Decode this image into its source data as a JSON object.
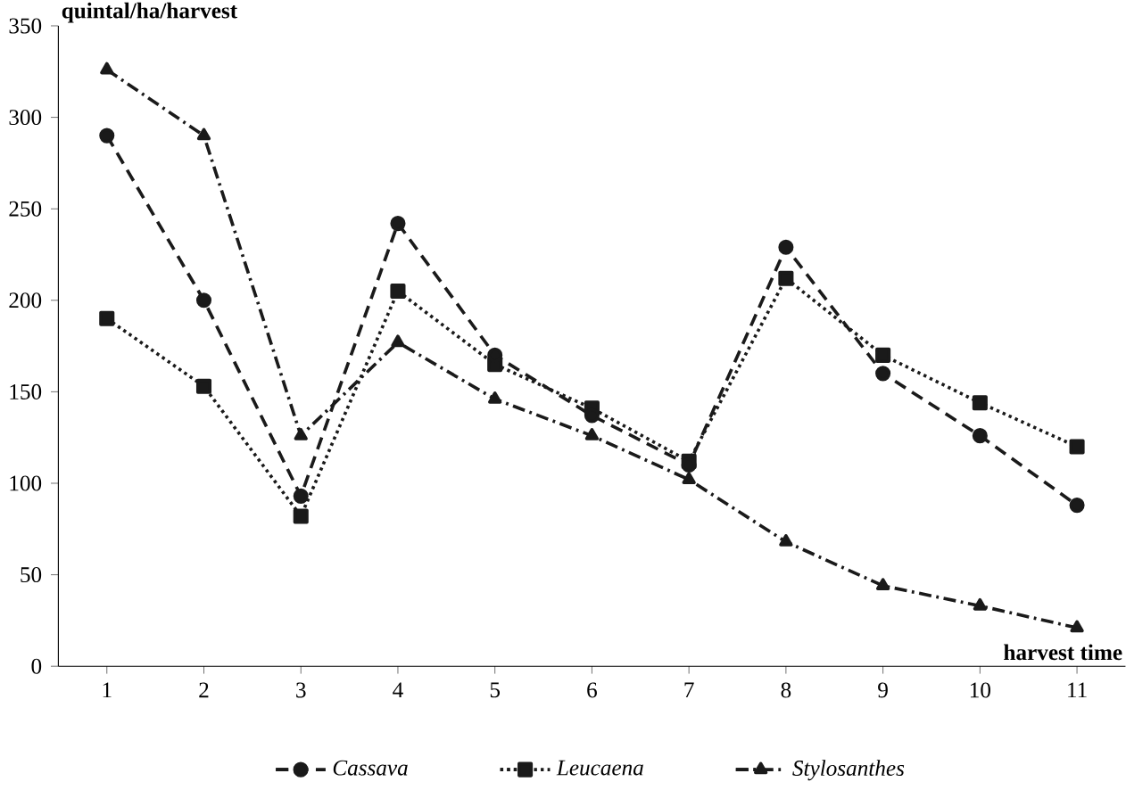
{
  "chart_data": {
    "type": "line",
    "xlabel": "harvest time",
    "ylabel": "quintal/ha/harvest",
    "categories": [
      "1",
      "2",
      "3",
      "4",
      "5",
      "6",
      "7",
      "8",
      "9",
      "10",
      "11"
    ],
    "series": [
      {
        "name": "Cassava",
        "color": "#1a1a1a",
        "marker": "circle",
        "line_style": "dashed",
        "values": [
          290,
          200,
          93,
          242,
          170,
          137,
          110,
          229,
          160,
          126,
          88
        ]
      },
      {
        "name": "Leucaena",
        "color": "#1a1a1a",
        "marker": "square",
        "line_style": "dotted",
        "values": [
          190,
          153,
          82,
          205,
          165,
          141,
          112,
          212,
          170,
          144,
          120
        ]
      },
      {
        "name": "Stylosanthes",
        "color": "#1a1a1a",
        "marker": "triangle",
        "line_style": "dashdot",
        "values": [
          326,
          290,
          126,
          177,
          146,
          126,
          102,
          68,
          44,
          33,
          21
        ]
      }
    ],
    "ylim": [
      0,
      350
    ],
    "yticks": [
      0,
      50,
      100,
      150,
      200,
      250,
      300,
      350
    ],
    "grid": false,
    "legend": "bottom"
  }
}
